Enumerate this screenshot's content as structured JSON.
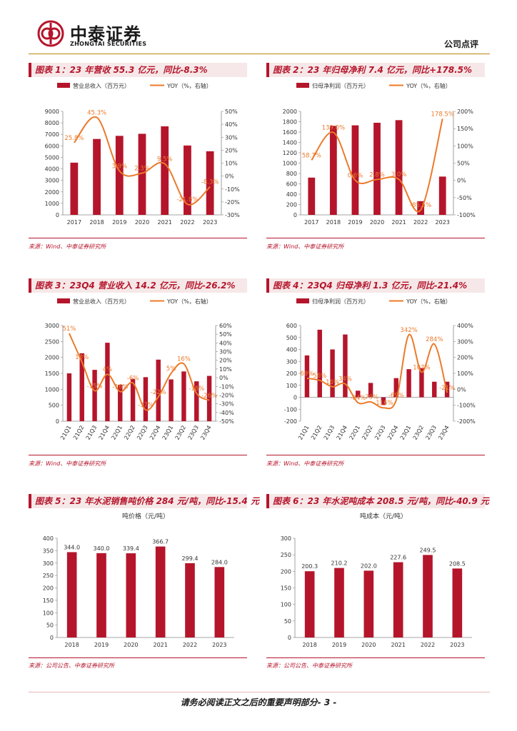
{
  "header": {
    "brand_cn": "中泰证券",
    "brand_en": "ZHONGTAI SECURITIES",
    "doc_type": "公司点评",
    "brand_color": "#b5152b"
  },
  "footer": {
    "text": "请务必阅读正文之后的重要声明部分- 3 -"
  },
  "panels": [
    {
      "title": "图表 1：23 年营收 55.3 亿元，同比-8.3%",
      "source": "来源：Wind、中泰证券研究所",
      "chart_data": {
        "type": "bar",
        "categories": [
          "2017",
          "2018",
          "2019",
          "2020",
          "2021",
          "2022",
          "2023"
        ],
        "series": [
          {
            "name": "营业总收入（百万元）",
            "type": "bar",
            "axis": "left",
            "values": [
              4540,
              6600,
              6870,
              7050,
              7700,
              6030,
              5530
            ]
          },
          {
            "name": "YOY（%，右轴）",
            "type": "line",
            "axis": "right",
            "values": [
              25.8,
              45.3,
              3.9,
              2.3,
              9.5,
              -21.8,
              -8.3
            ],
            "labels": [
              "25.8%",
              "45.3%",
              "3.9%",
              "2.3%",
              "9.5%",
              "-21.8%",
              "-8.3%"
            ]
          }
        ],
        "ylim": [
          0,
          9000
        ],
        "yticks": [
          0,
          1000,
          2000,
          3000,
          4000,
          5000,
          6000,
          7000,
          8000,
          9000
        ],
        "ytick_labels": [
          "0",
          "1000",
          "2000",
          "3000",
          "4000",
          "5000",
          "6000",
          "7000",
          "8000",
          "9000"
        ],
        "y2lim": [
          -30,
          50
        ],
        "y2ticks": [
          -30,
          -20,
          -10,
          0,
          10,
          20,
          30,
          40,
          50
        ],
        "y2tick_labels": [
          "-30%",
          "-20%",
          "-10%",
          "0%",
          "10%",
          "20%",
          "30%",
          "40%",
          "50%"
        ],
        "legend": "top",
        "xlabel_rotate": false
      }
    },
    {
      "title": "图表 2：23 年归母净利 7.4 亿元，同比+178.5%",
      "source": "来源：Wind、中泰证券研究所",
      "chart_data": {
        "type": "bar",
        "categories": [
          "2017",
          "2018",
          "2019",
          "2020",
          "2021",
          "2022",
          "2023"
        ],
        "series": [
          {
            "name": "归母净利润（百万元）",
            "type": "bar",
            "axis": "left",
            "values": [
              720,
              1720,
              1730,
              1780,
              1830,
              265,
              740
            ]
          },
          {
            "name": "YOY（%，右轴）",
            "type": "line",
            "axis": "right",
            "values": [
              58.7,
              139.0,
              0.6,
              2.8,
              3.0,
              -85.5,
              178.5
            ],
            "labels": [
              "58.7%",
              "139.0%",
              "0.6%",
              "2.8%",
              "3.0%",
              "-85.5%",
              "178.5%"
            ]
          }
        ],
        "ylim": [
          0,
          2000
        ],
        "yticks": [
          0,
          200,
          400,
          600,
          800,
          1000,
          1200,
          1400,
          1600,
          1800,
          2000
        ],
        "ytick_labels": [
          "0",
          "200",
          "400",
          "600",
          "800",
          "1000",
          "1200",
          "1400",
          "1600",
          "1800",
          "2000"
        ],
        "y2lim": [
          -100,
          200
        ],
        "y2ticks": [
          -100,
          -50,
          0,
          50,
          100,
          150,
          200
        ],
        "y2tick_labels": [
          "-100%",
          "-50%",
          "0%",
          "50%",
          "100%",
          "150%",
          "200%"
        ],
        "legend": "top",
        "xlabel_rotate": false
      }
    },
    {
      "title": "图表 3：23Q4 营业收入 14.2 亿元，同比-26.2%",
      "source": "来源：Wind、中泰证券研究所",
      "chart_data": {
        "type": "bar",
        "categories": [
          "21Q1",
          "21Q2",
          "21Q3",
          "21Q4",
          "22Q1",
          "22Q2",
          "22Q3",
          "22Q4",
          "23Q1",
          "23Q2",
          "23Q3",
          "23Q4"
        ],
        "series": [
          {
            "name": "营业总收入（百万元）",
            "type": "bar",
            "axis": "left",
            "values": [
              1500,
              2130,
              1610,
              2460,
              1140,
              1330,
              1380,
              1930,
              1310,
              1560,
              1250,
              1420
            ],
            "note": ""
          },
          {
            "name": "YOY（%，右轴）",
            "type": "line",
            "axis": "right",
            "values": [
              51,
              18,
              -15,
              4,
              -16,
              -6,
              -37,
              -22,
              5,
              16,
              -18,
              -26
            ],
            "labels": [
              "51%",
              "18%",
              "-15%",
              "4%",
              "-16%",
              "-6%",
              "-37%",
              "-22%",
              "5%",
              "16%",
              "-18%",
              "-26%"
            ]
          }
        ],
        "ylim": [
          0,
          3000
        ],
        "yticks": [
          0,
          500,
          1000,
          1500,
          2000,
          2500,
          3000
        ],
        "ytick_labels": [
          "0",
          "500",
          "1000",
          "1500",
          "2000",
          "2500",
          "3000"
        ],
        "y2lim": [
          -50,
          60
        ],
        "y2ticks": [
          -50,
          -40,
          -30,
          -20,
          -10,
          0,
          10,
          20,
          30,
          40,
          50,
          60
        ],
        "y2tick_labels": [
          "-50%",
          "-40%",
          "-30%",
          "-20%",
          "-10%",
          "0%",
          "10%",
          "20%",
          "30%",
          "40%",
          "50%",
          "60%"
        ],
        "legend": "top",
        "xlabel_rotate": true
      }
    },
    {
      "title": "图表 4：23Q4 归母净利 1.3 亿元，同比-21.4%",
      "source": "来源：Wind、中泰证券研究所",
      "chart_data": {
        "type": "bar",
        "categories": [
          "21Q1",
          "21Q2",
          "21Q3",
          "21Q4",
          "22Q1",
          "22Q2",
          "22Q3",
          "22Q4",
          "23Q1",
          "23Q2",
          "23Q3",
          "23Q4"
        ],
        "series": [
          {
            "name": "归母净利润（百万元）",
            "type": "bar",
            "axis": "left",
            "values": [
              350,
              565,
              400,
              525,
              55,
              120,
              -65,
              160,
              235,
              245,
              130,
              130
            ]
          },
          {
            "name": "YOY（%，右轴）",
            "type": "line",
            "axis": "right",
            "values": [
              69,
              56,
              16,
              34,
              -84,
              -79,
              -116,
              -69,
              342,
              107,
              284,
              -21
            ],
            "labels": [
              "69%",
              "56%",
              "16%",
              "34%",
              "-84%",
              "-79%",
              "-116%",
              "-69%",
              "342%",
              "107%",
              "284%",
              "-21%"
            ]
          }
        ],
        "ylim": [
          -200,
          600
        ],
        "yticks": [
          -200,
          -100,
          0,
          100,
          200,
          300,
          400,
          500,
          600
        ],
        "ytick_labels": [
          "-200",
          "-100",
          "0",
          "100",
          "200",
          "300",
          "400",
          "500",
          "600"
        ],
        "y2lim": [
          -200,
          400
        ],
        "y2ticks": [
          -200,
          -100,
          0,
          100,
          200,
          300,
          400
        ],
        "y2tick_labels": [
          "-200%",
          "-100%",
          "0%",
          "100%",
          "200%",
          "300%",
          "400%"
        ],
        "legend": "top",
        "xlabel_rotate": true
      }
    },
    {
      "title": "图表 5：23 年水泥销售吨价格 284 元/吨，同比-15.4 元",
      "source": "来源：公司公告、中泰证券研究所",
      "chart_data": {
        "type": "bar",
        "title": "吨价格（元/吨）",
        "categories": [
          "2018",
          "2019",
          "2020",
          "2021",
          "2022",
          "2023"
        ],
        "series": [
          {
            "name": "吨价格（元/吨）",
            "type": "bar",
            "axis": "left",
            "values": [
              344.0,
              340.0,
              339.4,
              366.7,
              299.4,
              284.0
            ],
            "labels": [
              "344.0",
              "340.0",
              "339.4",
              "366.7",
              "299.4",
              "284.0"
            ]
          }
        ],
        "ylim": [
          0,
          400
        ],
        "yticks": [
          0,
          50,
          100,
          150,
          200,
          250,
          300,
          350,
          400
        ],
        "ytick_labels": [
          "0",
          "50",
          "100",
          "150",
          "200",
          "250",
          "300",
          "350",
          "400"
        ],
        "legend": "none",
        "xlabel_rotate": false
      }
    },
    {
      "title": "图表 6：23 年水泥吨成本 208.5 元/吨，同比-40.9 元",
      "source": "来源：公司公告、中泰证券研究所",
      "chart_data": {
        "type": "bar",
        "title": "吨成本（元/吨）",
        "categories": [
          "2018",
          "2019",
          "2020",
          "2021",
          "2022",
          "2023"
        ],
        "series": [
          {
            "name": "吨成本（元/吨）",
            "type": "bar",
            "axis": "left",
            "values": [
              200.3,
              210.2,
              202.0,
              227.6,
              249.5,
              208.5
            ],
            "labels": [
              "200.3",
              "210.2",
              "202.0",
              "227.6",
              "249.5",
              "208.5"
            ]
          }
        ],
        "ylim": [
          0,
          300
        ],
        "yticks": [
          0,
          50,
          100,
          150,
          200,
          250,
          300
        ],
        "ytick_labels": [
          "0",
          "50",
          "100",
          "150",
          "200",
          "250",
          "300"
        ],
        "legend": "none",
        "xlabel_rotate": false
      }
    }
  ]
}
